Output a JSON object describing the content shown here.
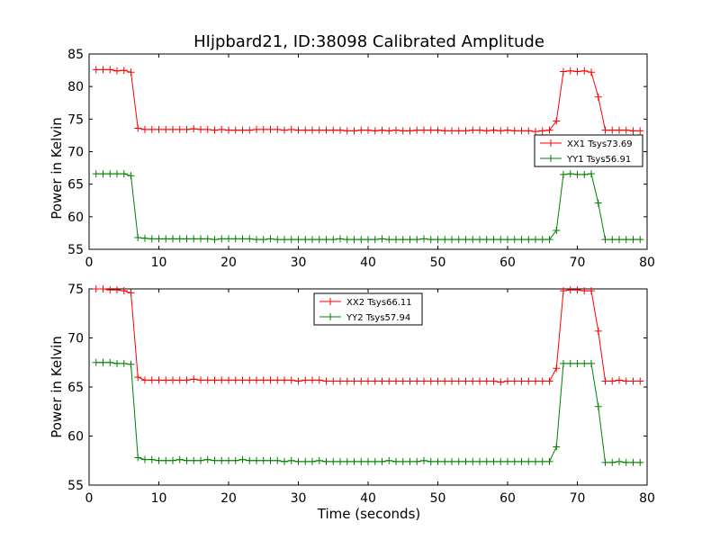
{
  "chart_data": {
    "title": "HIjpbard21, ID:38098 Calibrated Amplitude",
    "xlabel": "Time (seconds)",
    "colors": {
      "XX": "#ff0000",
      "YY": "#008000"
    },
    "x": [
      1,
      2,
      3,
      4,
      5,
      6,
      7,
      8,
      9,
      10,
      11,
      12,
      13,
      14,
      15,
      16,
      17,
      18,
      19,
      20,
      21,
      22,
      23,
      24,
      25,
      26,
      27,
      28,
      29,
      30,
      31,
      32,
      33,
      34,
      35,
      36,
      37,
      38,
      39,
      40,
      41,
      42,
      43,
      44,
      45,
      46,
      47,
      48,
      49,
      50,
      51,
      52,
      53,
      54,
      55,
      56,
      57,
      58,
      59,
      60,
      61,
      62,
      63,
      64,
      65,
      66,
      67,
      68,
      69,
      70,
      71,
      72,
      73,
      74,
      75,
      76,
      77,
      78,
      79
    ],
    "panels": [
      {
        "type": "line",
        "ylabel": "Power in Kelvin",
        "xlim": [
          0,
          80
        ],
        "ylim": [
          55,
          85
        ],
        "xticks": [
          0,
          10,
          20,
          30,
          40,
          50,
          60,
          70,
          80
        ],
        "yticks": [
          55,
          60,
          65,
          70,
          75,
          80,
          85
        ],
        "legend_position": "center-right",
        "series": [
          {
            "name": "XX1 Tsys73.69",
            "color_key": "XX",
            "values": [
              82.6,
              82.6,
              82.6,
              82.4,
              82.5,
              82.2,
              73.6,
              73.4,
              73.4,
              73.4,
              73.4,
              73.4,
              73.4,
              73.4,
              73.5,
              73.4,
              73.4,
              73.3,
              73.4,
              73.3,
              73.3,
              73.3,
              73.3,
              73.4,
              73.4,
              73.4,
              73.4,
              73.3,
              73.4,
              73.3,
              73.3,
              73.3,
              73.3,
              73.3,
              73.3,
              73.3,
              73.2,
              73.2,
              73.3,
              73.3,
              73.2,
              73.3,
              73.2,
              73.3,
              73.2,
              73.2,
              73.3,
              73.3,
              73.3,
              73.3,
              73.2,
              73.2,
              73.2,
              73.2,
              73.3,
              73.3,
              73.2,
              73.3,
              73.2,
              73.3,
              73.2,
              73.2,
              73.2,
              73.1,
              73.2,
              73.3,
              74.7,
              82.3,
              82.4,
              82.3,
              82.4,
              82.2,
              78.4,
              73.3,
              73.3,
              73.3,
              73.3,
              73.2,
              73.2
            ]
          },
          {
            "name": "YY1 Tsys56.91",
            "color_key": "YY",
            "values": [
              66.6,
              66.6,
              66.6,
              66.6,
              66.6,
              66.3,
              56.8,
              56.7,
              56.6,
              56.6,
              56.6,
              56.6,
              56.6,
              56.6,
              56.6,
              56.6,
              56.6,
              56.5,
              56.6,
              56.6,
              56.6,
              56.6,
              56.6,
              56.5,
              56.5,
              56.6,
              56.5,
              56.5,
              56.5,
              56.5,
              56.5,
              56.5,
              56.5,
              56.5,
              56.5,
              56.6,
              56.5,
              56.5,
              56.5,
              56.5,
              56.5,
              56.6,
              56.5,
              56.5,
              56.5,
              56.5,
              56.5,
              56.6,
              56.5,
              56.5,
              56.5,
              56.5,
              56.5,
              56.5,
              56.5,
              56.5,
              56.5,
              56.5,
              56.5,
              56.5,
              56.5,
              56.5,
              56.5,
              56.5,
              56.5,
              56.5,
              57.9,
              66.5,
              66.6,
              66.5,
              66.5,
              66.6,
              62.1,
              56.5,
              56.5,
              56.5,
              56.5,
              56.5,
              56.5
            ]
          }
        ]
      },
      {
        "type": "line",
        "ylabel": "Power in Kelvin",
        "xlabel": "Time (seconds)",
        "xlim": [
          0,
          80
        ],
        "ylim": [
          55,
          75
        ],
        "xticks": [
          0,
          10,
          20,
          30,
          40,
          50,
          60,
          70,
          80
        ],
        "yticks": [
          55,
          60,
          65,
          70,
          75
        ],
        "legend_position": "upper-center",
        "series": [
          {
            "name": "XX2 Tsys66.11",
            "color_key": "XX",
            "values": [
              75.0,
              75.0,
              74.9,
              74.9,
              74.8,
              74.6,
              66.0,
              65.7,
              65.7,
              65.7,
              65.7,
              65.7,
              65.7,
              65.7,
              65.8,
              65.7,
              65.7,
              65.7,
              65.7,
              65.7,
              65.7,
              65.7,
              65.7,
              65.7,
              65.7,
              65.7,
              65.7,
              65.7,
              65.7,
              65.6,
              65.7,
              65.7,
              65.7,
              65.6,
              65.6,
              65.6,
              65.6,
              65.6,
              65.6,
              65.6,
              65.6,
              65.6,
              65.6,
              65.6,
              65.6,
              65.6,
              65.6,
              65.6,
              65.6,
              65.6,
              65.6,
              65.6,
              65.6,
              65.6,
              65.6,
              65.6,
              65.6,
              65.6,
              65.5,
              65.6,
              65.6,
              65.6,
              65.6,
              65.6,
              65.6,
              65.6,
              66.9,
              74.8,
              74.9,
              74.9,
              74.8,
              74.8,
              70.7,
              65.6,
              65.6,
              65.7,
              65.6,
              65.6,
              65.6
            ]
          },
          {
            "name": "YY2 Tsys57.94",
            "color_key": "YY",
            "values": [
              67.5,
              67.5,
              67.5,
              67.4,
              67.4,
              67.3,
              57.8,
              57.6,
              57.6,
              57.5,
              57.5,
              57.5,
              57.6,
              57.5,
              57.5,
              57.5,
              57.6,
              57.5,
              57.5,
              57.5,
              57.5,
              57.6,
              57.5,
              57.5,
              57.5,
              57.5,
              57.5,
              57.4,
              57.5,
              57.4,
              57.4,
              57.4,
              57.5,
              57.4,
              57.4,
              57.4,
              57.4,
              57.4,
              57.4,
              57.4,
              57.4,
              57.4,
              57.5,
              57.4,
              57.4,
              57.4,
              57.4,
              57.5,
              57.4,
              57.4,
              57.4,
              57.4,
              57.4,
              57.4,
              57.4,
              57.4,
              57.4,
              57.4,
              57.4,
              57.4,
              57.4,
              57.4,
              57.4,
              57.4,
              57.4,
              57.4,
              58.9,
              67.4,
              67.4,
              67.4,
              67.4,
              67.4,
              63.0,
              57.3,
              57.3,
              57.4,
              57.3,
              57.3,
              57.3
            ]
          }
        ]
      }
    ]
  }
}
